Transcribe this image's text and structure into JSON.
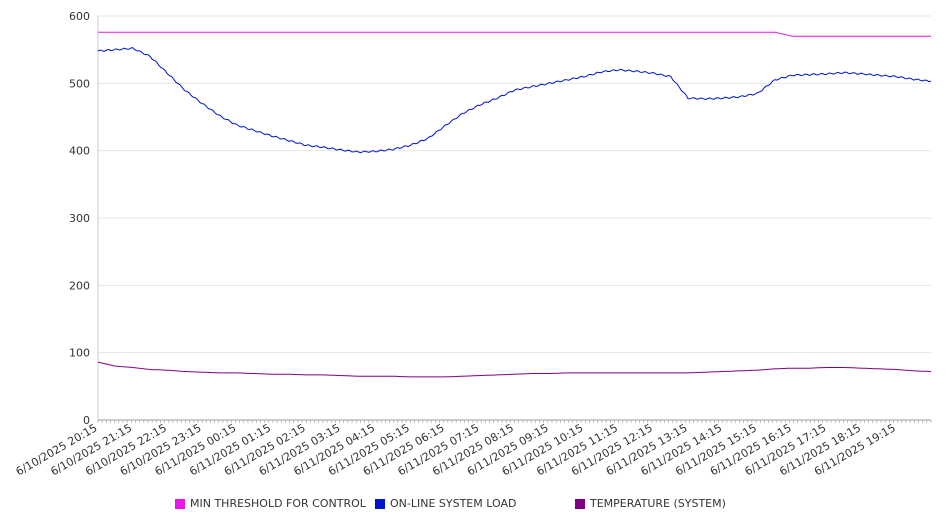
{
  "chart_data": {
    "type": "line",
    "ylim": [
      0,
      600
    ],
    "yticks": [
      0,
      100,
      200,
      300,
      400,
      500,
      600
    ],
    "grid": true,
    "legend_position": "bottom",
    "x_tick_labels": [
      "6/10/2025 20:15",
      "6/10/2025 21:15",
      "6/10/2025 22:15",
      "6/10/2025 23:15",
      "6/11/2025 00:15",
      "6/11/2025 01:15",
      "6/11/2025 02:15",
      "6/11/2025 03:15",
      "6/11/2025 04:15",
      "6/11/2025 05:15",
      "6/11/2025 06:15",
      "6/11/2025 07:15",
      "6/11/2025 08:15",
      "6/11/2025 09:15",
      "6/11/2025 10:15",
      "6/11/2025 11:15",
      "6/11/2025 12:15",
      "6/11/2025 13:15",
      "6/11/2025 14:15",
      "6/11/2025 15:15",
      "6/11/2025 16:15",
      "6/11/2025 17:15",
      "6/11/2025 18:15",
      "6/11/2025 19:15"
    ],
    "x": [
      "6/10/2025 20:15",
      "6/10/2025 20:45",
      "6/10/2025 21:15",
      "6/10/2025 21:45",
      "6/10/2025 22:15",
      "6/10/2025 22:45",
      "6/10/2025 23:15",
      "6/10/2025 23:45",
      "6/11/2025 00:15",
      "6/11/2025 00:45",
      "6/11/2025 01:15",
      "6/11/2025 01:45",
      "6/11/2025 02:15",
      "6/11/2025 02:45",
      "6/11/2025 03:15",
      "6/11/2025 03:45",
      "6/11/2025 04:15",
      "6/11/2025 04:45",
      "6/11/2025 05:15",
      "6/11/2025 05:45",
      "6/11/2025 06:15",
      "6/11/2025 06:45",
      "6/11/2025 07:15",
      "6/11/2025 07:45",
      "6/11/2025 08:15",
      "6/11/2025 08:45",
      "6/11/2025 09:15",
      "6/11/2025 09:45",
      "6/11/2025 10:15",
      "6/11/2025 10:45",
      "6/11/2025 11:15",
      "6/11/2025 11:45",
      "6/11/2025 12:15",
      "6/11/2025 12:45",
      "6/11/2025 13:15",
      "6/11/2025 13:45",
      "6/11/2025 14:15",
      "6/11/2025 14:45",
      "6/11/2025 15:15",
      "6/11/2025 15:45",
      "6/11/2025 16:15",
      "6/11/2025 16:45",
      "6/11/2025 17:15",
      "6/11/2025 17:45",
      "6/11/2025 18:15",
      "6/11/2025 18:45",
      "6/11/2025 19:15",
      "6/11/2025 19:45",
      "6/11/2025 20:15"
    ],
    "series": [
      {
        "name": "MIN THRESHOLD FOR CONTROL",
        "color": "#e619e6",
        "values": [
          576,
          576,
          576,
          576,
          576,
          576,
          576,
          576,
          576,
          576,
          576,
          576,
          576,
          576,
          576,
          576,
          576,
          576,
          576,
          576,
          576,
          576,
          576,
          576,
          576,
          576,
          576,
          576,
          576,
          576,
          576,
          576,
          576,
          576,
          576,
          576,
          576,
          576,
          576,
          576,
          570,
          570,
          570,
          570,
          570,
          570,
          570,
          570,
          570
        ]
      },
      {
        "name": "ON-LINE SYSTEM LOAD",
        "color": "#0014d2",
        "values": [
          548,
          550,
          552,
          540,
          515,
          490,
          470,
          452,
          438,
          430,
          422,
          415,
          408,
          405,
          401,
          398,
          399,
          402,
          408,
          418,
          437,
          455,
          468,
          478,
          490,
          495,
          500,
          505,
          510,
          517,
          520,
          518,
          515,
          510,
          478,
          477,
          478,
          480,
          485,
          505,
          512,
          513,
          514,
          516,
          514,
          512,
          510,
          506,
          503
        ]
      },
      {
        "name": "TEMPERATURE (SYSTEM)",
        "color": "#800080",
        "values": [
          86,
          80,
          78,
          75,
          74,
          72,
          71,
          70,
          70,
          69,
          68,
          68,
          67,
          67,
          66,
          65,
          65,
          65,
          64,
          64,
          64,
          65,
          66,
          67,
          68,
          69,
          69,
          70,
          70,
          70,
          70,
          70,
          70,
          70,
          70,
          71,
          72,
          73,
          74,
          76,
          77,
          77,
          78,
          78,
          77,
          76,
          75,
          73,
          72
        ]
      }
    ]
  }
}
